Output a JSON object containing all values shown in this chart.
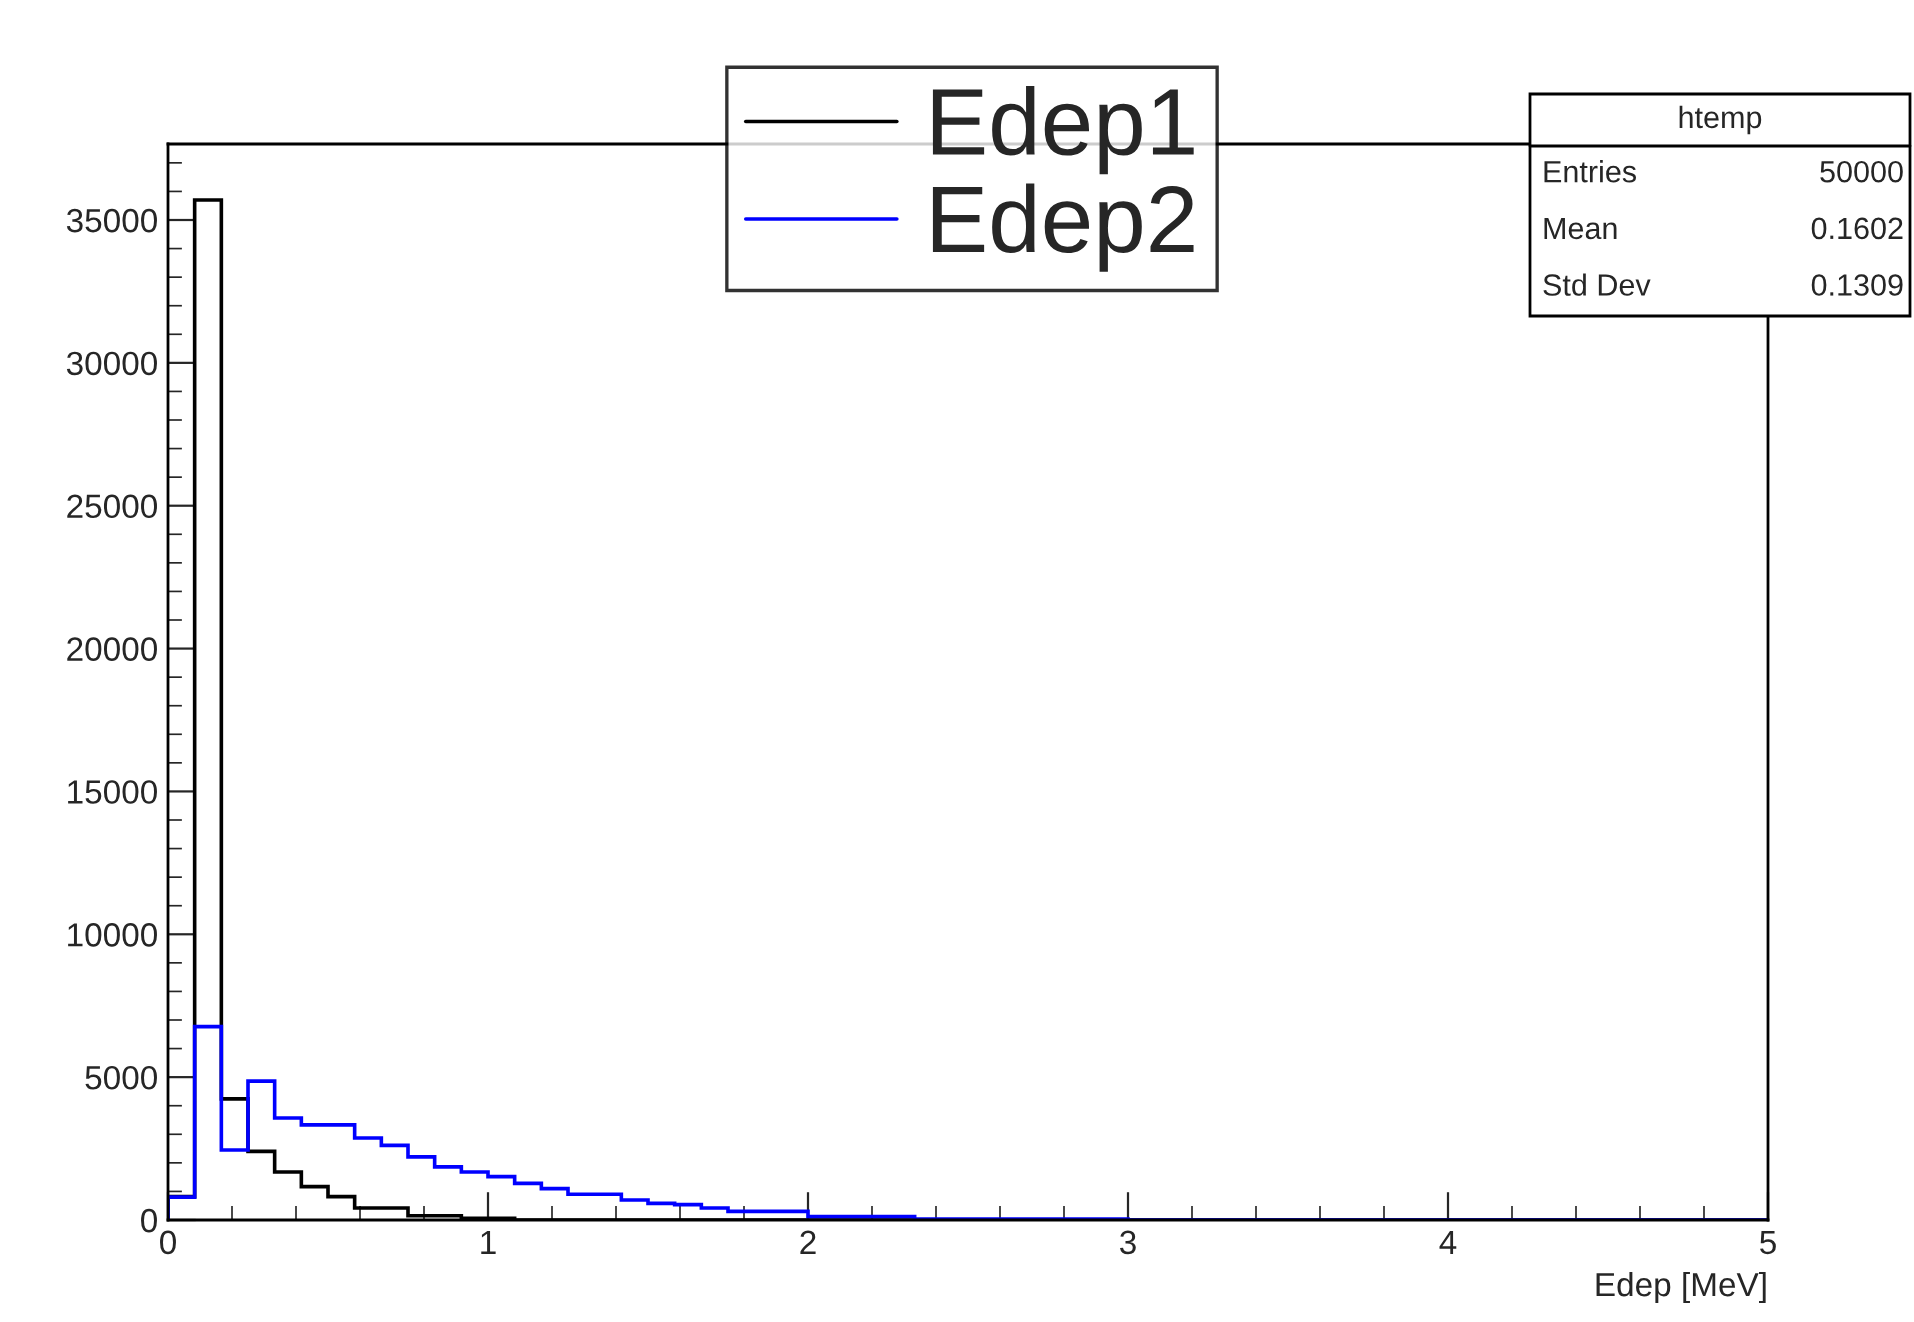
{
  "chart_data": {
    "type": "histogram",
    "xlabel": "Edep [MeV]",
    "bins": [
      0,
      0.0833,
      0.1667,
      0.25,
      0.3333,
      0.4167,
      0.5,
      0.5833,
      0.6667,
      0.75,
      0.8333,
      0.9167,
      1,
      1.0833,
      1.1667,
      1.25,
      1.3333,
      1.4167,
      1.5,
      1.5833,
      1.6667,
      1.75,
      1.8333,
      1.9167,
      2,
      2.0833,
      2.1667,
      2.25,
      2.3333,
      2.4167,
      2.5,
      2.5833,
      2.6667,
      2.75,
      2.8333,
      2.9167,
      3,
      3.0833,
      3.1667,
      3.25,
      3.3333,
      3.4167,
      3.5,
      3.5833,
      3.6667,
      3.75,
      3.8333,
      3.9167,
      4,
      4.0833,
      4.1667,
      4.25,
      4.3333,
      4.4167,
      4.5,
      4.5833,
      4.6667,
      4.75,
      4.8333,
      4.9167,
      5
    ],
    "series": [
      {
        "name": "Edep1",
        "color": "#000000",
        "values": [
          820,
          35700,
          4240,
          2400,
          1680,
          1170,
          820,
          420,
          420,
          150,
          150,
          60,
          60,
          0,
          0,
          0,
          0,
          0,
          0,
          0,
          0,
          0,
          0,
          0,
          0,
          0,
          0,
          0,
          0,
          0,
          0,
          0,
          0,
          0,
          0,
          0,
          0,
          0,
          0,
          0,
          0,
          0,
          0,
          0,
          0,
          0,
          0,
          0,
          0,
          0,
          0,
          0,
          0,
          0,
          0,
          0,
          0,
          0,
          0,
          0
        ]
      },
      {
        "name": "Edep2",
        "color": "#0000ff",
        "values": [
          800,
          6770,
          2450,
          4860,
          3570,
          3330,
          3330,
          2870,
          2610,
          2210,
          1860,
          1680,
          1520,
          1280,
          1100,
          900,
          900,
          700,
          580,
          540,
          420,
          300,
          300,
          300,
          120,
          120,
          120,
          120,
          30,
          30,
          30,
          30,
          30,
          30,
          30,
          30,
          0,
          0,
          0,
          0,
          0,
          0,
          0,
          0,
          0,
          0,
          0,
          0,
          0,
          0,
          0,
          0,
          0,
          0,
          0,
          0,
          0,
          0,
          0,
          0
        ]
      }
    ],
    "xlim": [
      0,
      5
    ],
    "ylim": [
      0,
      37660
    ],
    "xticks": [
      0,
      1,
      2,
      3,
      4,
      5
    ],
    "yticks": [
      0,
      5000,
      10000,
      15000,
      20000,
      25000,
      30000,
      35000
    ],
    "grid": false,
    "legend": "top",
    "annotations": [
      "htemp",
      "Entries",
      "50000",
      "Mean",
      "0.1602",
      "Std Dev",
      "0.1309"
    ]
  }
}
